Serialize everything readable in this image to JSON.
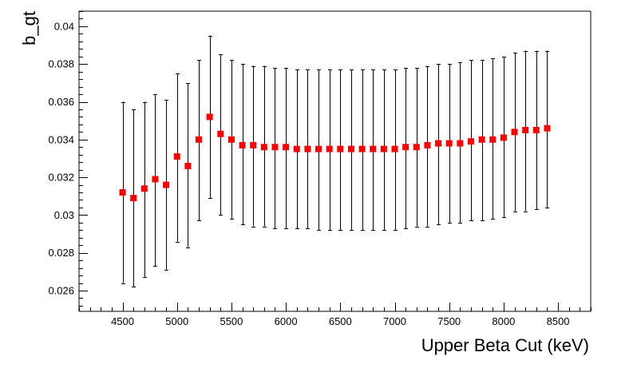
{
  "chart_data": {
    "type": "scatter",
    "title": "",
    "xlabel": "Upper Beta Cut (keV)",
    "ylabel": "b_gt",
    "xlim": [
      4100,
      8800
    ],
    "ylim": [
      0.0249,
      0.0408
    ],
    "x_ticks": [
      4500,
      5000,
      5500,
      6000,
      6500,
      7000,
      7500,
      8000,
      8500
    ],
    "y_ticks": [
      0.026,
      0.028,
      0.03,
      0.032,
      0.034,
      0.036,
      0.038,
      0.04
    ],
    "grid": false,
    "colors": {
      "marker": "#ff0000",
      "error_bar": "#000000",
      "axis": "#000000"
    },
    "series": [
      {
        "marker": "square",
        "x": [
          4500,
          4600,
          4700,
          4800,
          4900,
          5000,
          5100,
          5200,
          5300,
          5400,
          5500,
          5600,
          5700,
          5800,
          5900,
          6000,
          6100,
          6200,
          6300,
          6400,
          6500,
          6600,
          6700,
          6800,
          6900,
          7000,
          7100,
          7200,
          7300,
          7400,
          7500,
          7600,
          7700,
          7800,
          7900,
          8000,
          8100,
          8200,
          8300,
          8400
        ],
        "y": [
          0.0312,
          0.0309,
          0.0314,
          0.0319,
          0.0316,
          0.0331,
          0.0326,
          0.034,
          0.0352,
          0.0343,
          0.034,
          0.0337,
          0.0337,
          0.0336,
          0.0336,
          0.0336,
          0.0335,
          0.0335,
          0.0335,
          0.0335,
          0.0335,
          0.0335,
          0.0335,
          0.0335,
          0.0335,
          0.0335,
          0.0336,
          0.0336,
          0.0337,
          0.0338,
          0.0338,
          0.0338,
          0.0339,
          0.034,
          0.034,
          0.0341,
          0.0344,
          0.0345,
          0.0345,
          0.0346
        ],
        "y_err_low": [
          0.0264,
          0.0262,
          0.0267,
          0.0273,
          0.0271,
          0.0286,
          0.0283,
          0.0297,
          0.0309,
          0.03,
          0.0298,
          0.0295,
          0.0294,
          0.0294,
          0.0293,
          0.0293,
          0.0293,
          0.0293,
          0.0292,
          0.0292,
          0.0292,
          0.0292,
          0.0292,
          0.0292,
          0.0292,
          0.0292,
          0.0293,
          0.0294,
          0.0294,
          0.0295,
          0.0296,
          0.0296,
          0.0297,
          0.0297,
          0.0298,
          0.0299,
          0.0302,
          0.0302,
          0.0303,
          0.0304
        ],
        "y_err_high": [
          0.036,
          0.0356,
          0.036,
          0.0364,
          0.0361,
          0.0375,
          0.037,
          0.0382,
          0.0395,
          0.0385,
          0.0382,
          0.038,
          0.0379,
          0.0379,
          0.0378,
          0.0378,
          0.0377,
          0.0377,
          0.0377,
          0.0377,
          0.0377,
          0.0377,
          0.0377,
          0.0377,
          0.0377,
          0.0377,
          0.0378,
          0.0378,
          0.0379,
          0.038,
          0.038,
          0.0381,
          0.0382,
          0.0382,
          0.0383,
          0.0384,
          0.0386,
          0.0387,
          0.0387,
          0.0387
        ]
      }
    ]
  }
}
